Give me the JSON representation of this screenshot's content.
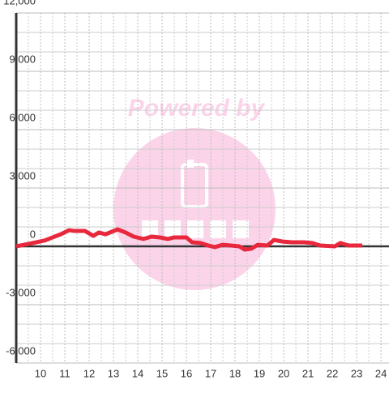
{
  "chart_data": {
    "type": "line",
    "watermark": "Powered by",
    "xlim": [
      9,
      24.33
    ],
    "ylim": [
      -6000,
      12000
    ],
    "xticks": [
      10,
      11,
      12,
      13,
      14,
      15,
      16,
      17,
      18,
      19,
      20,
      21,
      22,
      23,
      24
    ],
    "yticks": [
      {
        "value": -6000,
        "label": "-6,000"
      },
      {
        "value": -3000,
        "label": "-3,000"
      },
      0,
      {
        "value": 3000,
        "label": "3,000"
      },
      {
        "value": 6000,
        "label": "6,000"
      },
      {
        "value": 9000,
        "label": "9,000"
      },
      {
        "value": 12000,
        "label": "12,000"
      }
    ],
    "grid": true,
    "series": [
      {
        "color": "#e8283c",
        "x": [
          9.0,
          9.33,
          9.67,
          10.17,
          10.5,
          10.83,
          11.17,
          11.4,
          11.83,
          12.17,
          12.4,
          12.67,
          13.17,
          13.5,
          13.83,
          14.23,
          14.57,
          14.9,
          15.23,
          15.5,
          16.0,
          16.23,
          16.57,
          16.9,
          17.17,
          17.5,
          17.83,
          18.17,
          18.4,
          18.67,
          18.93,
          19.33,
          19.6,
          19.93,
          20.33,
          20.83,
          21.17,
          21.5,
          22.1,
          22.33,
          22.67,
          23.23
        ],
        "values": [
          0,
          80,
          170,
          300,
          460,
          620,
          830,
          790,
          790,
          540,
          710,
          620,
          870,
          710,
          500,
          380,
          500,
          460,
          380,
          460,
          460,
          210,
          170,
          40,
          -40,
          80,
          40,
          0,
          -170,
          -120,
          80,
          40,
          330,
          250,
          210,
          210,
          170,
          40,
          0,
          170,
          40,
          40
        ]
      }
    ]
  }
}
